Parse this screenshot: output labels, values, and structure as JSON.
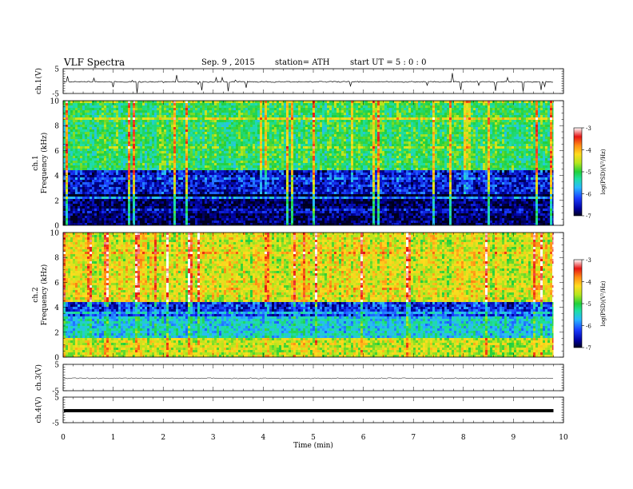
{
  "header": {
    "title": "VLF  Spectra",
    "date": "Sep. 9  , 2015",
    "station": "station= ATH",
    "start_time": "start  UT  =    5  : 0  : 0"
  },
  "colors": {
    "colormap": [
      "#00001e",
      "#0000a0",
      "#1a3cff",
      "#29b8ff",
      "#1ee0a0",
      "#22d03a",
      "#b4e61e",
      "#ffdc1e",
      "#ff8c14",
      "#e61414",
      "#ffffff"
    ],
    "waveform": "#000000",
    "axis": "#000000",
    "background": "#ffffff"
  },
  "chart_data": [
    {
      "type": "line",
      "panel": "ch1-waveform",
      "ylabel": "ch.1(V)",
      "ylim": [
        -5,
        5
      ],
      "yticks": [
        5,
        -5
      ],
      "mean": -0.3,
      "spike_amplitude": 4.8
    },
    {
      "type": "heatmap",
      "panel": "ch1-spectrogram",
      "ylabel": "ch.1 Frequency  (kHz)",
      "ylim": [
        0,
        10
      ],
      "yticks": [
        0,
        2,
        4,
        6,
        8,
        10
      ],
      "x_end": 9.8,
      "colorbar": {
        "label": "log(PSD)(V²/Hz)",
        "range": [
          -7,
          -3
        ],
        "ticks": [
          "-3",
          "-4",
          "-5",
          "-6",
          "-7"
        ]
      },
      "bands": [
        {
          "f": [
            0,
            2.5
          ],
          "level": -6.8
        },
        {
          "f": [
            2.5,
            4.5
          ],
          "level": -6.4
        },
        {
          "f": [
            4.5,
            10
          ],
          "level": -5.1
        }
      ]
    },
    {
      "type": "heatmap",
      "panel": "ch2-spectrogram",
      "ylabel": "ch.2 Frequency  (kHz)",
      "ylim": [
        0,
        10
      ],
      "yticks": [
        0,
        2,
        4,
        6,
        8,
        10
      ],
      "x_end": 9.8,
      "colorbar": {
        "label": "log(PSD)(V²/Hz)",
        "range": [
          -7,
          -3
        ],
        "ticks": [
          "-3",
          "-4",
          "-5",
          "-6",
          "-7"
        ]
      },
      "bands": [
        {
          "f": [
            0,
            1.5
          ],
          "level": -4.5
        },
        {
          "f": [
            1.5,
            3.2
          ],
          "level": -5.6
        },
        {
          "f": [
            3.2,
            4.5
          ],
          "level": -6.3
        },
        {
          "f": [
            4.5,
            10
          ],
          "level": -4.4
        }
      ]
    },
    {
      "type": "line",
      "panel": "ch3-waveform",
      "ylabel": "ch.3(V)",
      "ylim": [
        -5,
        5
      ],
      "yticks": [
        5,
        -5
      ],
      "mean": -0.3,
      "spike_amplitude": 0.3
    },
    {
      "type": "line",
      "panel": "ch4-waveform",
      "ylabel": "ch.4(V)",
      "ylim": [
        -5,
        5
      ],
      "yticks": [
        5,
        -5
      ],
      "mean": -0.3,
      "thick": true
    }
  ],
  "xaxis": {
    "label": "Time  (min)",
    "range": [
      0,
      10
    ],
    "ticks": [
      0,
      1,
      2,
      3,
      4,
      5,
      6,
      7,
      8,
      9,
      10
    ]
  }
}
